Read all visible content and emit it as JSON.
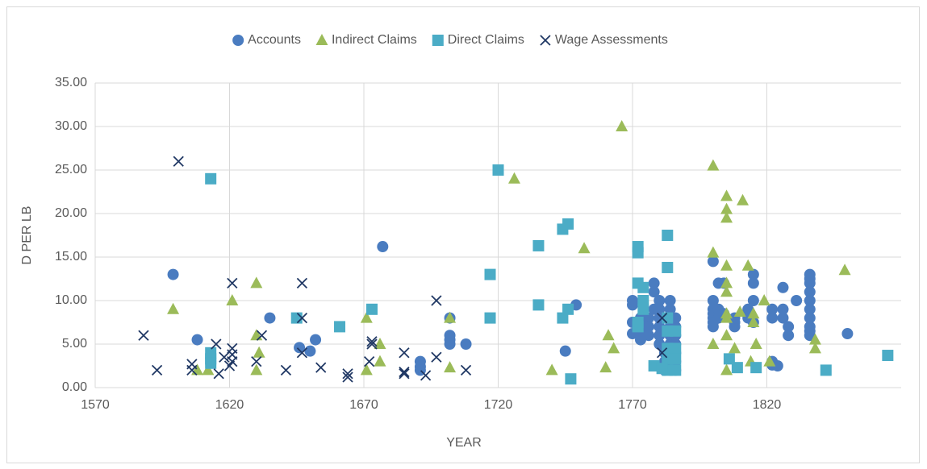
{
  "chart_data": {
    "type": "scatter",
    "x_label": "YEAR",
    "y_label": "D PER LB",
    "xlim": [
      1570,
      1870
    ],
    "xticks": [
      1570,
      1620,
      1670,
      1720,
      1770,
      1820
    ],
    "ylim": [
      0,
      35
    ],
    "yticks": [
      {
        "value": 0,
        "label": "0.00"
      },
      {
        "value": 5,
        "label": "5.00"
      },
      {
        "value": 10,
        "label": "10.00"
      },
      {
        "value": 15,
        "label": "15.00"
      },
      {
        "value": 20,
        "label": "20.00"
      },
      {
        "value": 25,
        "label": "25.00"
      },
      {
        "value": 30,
        "label": "30.00"
      },
      {
        "value": 35,
        "label": "35.00"
      }
    ],
    "grid": true,
    "legend": "top",
    "series": [
      {
        "name": "Accounts",
        "color": "#4a7cc0",
        "marker": "circle",
        "x": [
          1599,
          1608,
          1635,
          1646,
          1650,
          1652,
          1677,
          1691,
          1691,
          1691,
          1702,
          1702,
          1702,
          1702,
          1708,
          1745,
          1749,
          1770,
          1770,
          1770,
          1770,
          1773,
          1773,
          1773,
          1773,
          1776,
          1776,
          1776,
          1778,
          1778,
          1778,
          1780,
          1780,
          1780,
          1780,
          1780,
          1780,
          1782,
          1782,
          1782,
          1782,
          1784,
          1784,
          1784,
          1784,
          1784,
          1784,
          1784,
          1784,
          1784,
          1786,
          1786,
          1786,
          1786,
          1786,
          1786,
          1786,
          1800,
          1800,
          1800,
          1800,
          1800,
          1800,
          1800,
          1802,
          1802,
          1802,
          1804,
          1804,
          1808,
          1808,
          1808,
          1813,
          1813,
          1815,
          1815,
          1815,
          1815,
          1822,
          1822,
          1822,
          1822,
          1824,
          1826,
          1826,
          1826,
          1828,
          1828,
          1831,
          1836,
          1836,
          1836,
          1836,
          1836,
          1836,
          1836,
          1836,
          1836,
          1836,
          1850
        ],
        "values": [
          13,
          5.5,
          8,
          4.6,
          4.2,
          5.5,
          16.2,
          3,
          2.4,
          2,
          8,
          6,
          5.5,
          5,
          5,
          4.2,
          9.5,
          9.5,
          10,
          7.5,
          6.2,
          5.5,
          6.5,
          7.5,
          8,
          8,
          6,
          7,
          11,
          12,
          9,
          10,
          9,
          8,
          7,
          6,
          5,
          4,
          3,
          2.5,
          2,
          10,
          9,
          8,
          7,
          6,
          5,
          4,
          3,
          2,
          8,
          7,
          6,
          5,
          4,
          3,
          2,
          14.5,
          10,
          9,
          8.5,
          8,
          7.5,
          7,
          12,
          9,
          8,
          12,
          8.5,
          8,
          7.5,
          7,
          8,
          9,
          13,
          12,
          10,
          7.5,
          9,
          8,
          3,
          2.6,
          2.5,
          11.5,
          9,
          8,
          7,
          6,
          10,
          13,
          12.5,
          12,
          11,
          10,
          9,
          8,
          7,
          6.5,
          6,
          6.2
        ]
      },
      {
        "name": "Indirect Claims",
        "color": "#9bbb59",
        "marker": "triangle",
        "x": [
          1599,
          1608,
          1612,
          1621,
          1630,
          1630,
          1631,
          1630,
          1671,
          1671,
          1676,
          1676,
          1702,
          1702,
          1726,
          1740,
          1752,
          1761,
          1763,
          1760,
          1766,
          1800,
          1800,
          1800,
          1805,
          1805,
          1805,
          1805,
          1805,
          1805,
          1805,
          1805,
          1805,
          1805,
          1808,
          1811,
          1810,
          1813,
          1815,
          1815,
          1816,
          1814,
          1819,
          1821,
          1838,
          1838,
          1849
        ],
        "values": [
          9,
          2,
          2,
          10,
          12,
          6,
          4,
          2,
          8,
          2,
          5,
          3,
          8,
          2.3,
          24,
          2,
          16,
          6,
          4.5,
          2.3,
          30,
          25.5,
          15.5,
          5,
          22,
          20.5,
          19.5,
          14,
          12,
          11,
          8.5,
          8,
          6,
          2,
          4.5,
          21.5,
          8.7,
          14,
          8.5,
          7.5,
          5,
          3,
          10,
          3,
          5.5,
          4.5,
          13.5
        ]
      },
      {
        "name": "Direct Claims",
        "color": "#4bacc6",
        "marker": "square",
        "x": [
          1613,
          1613,
          1613,
          1613,
          1645,
          1661,
          1673,
          1717,
          1717,
          1720,
          1735,
          1735,
          1744,
          1746,
          1744,
          1746,
          1747,
          1772,
          1772,
          1772,
          1774,
          1774,
          1774,
          1772,
          1772,
          1783,
          1783,
          1783,
          1783,
          1783,
          1783,
          1783,
          1778,
          1781,
          1786,
          1786,
          1786,
          1786,
          1809,
          1806,
          1816,
          1842,
          1865
        ],
        "values": [
          24,
          4,
          3.3,
          2.8,
          8,
          7,
          9,
          13,
          8,
          25,
          16.3,
          9.5,
          18.2,
          18.8,
          8,
          9,
          1,
          16.2,
          15.5,
          12,
          11.5,
          10,
          9,
          7.5,
          7,
          17.5,
          13.8,
          8,
          6.5,
          4.5,
          3.3,
          2,
          2.5,
          2.2,
          6.5,
          4.5,
          3.3,
          2,
          2.3,
          3.3,
          2.3,
          2,
          3.7
        ]
      },
      {
        "name": "Wage Assessments",
        "color": "#203864",
        "marker": "x",
        "x": [
          1588,
          1593,
          1601,
          1606,
          1606,
          1615,
          1616,
          1618,
          1620,
          1621,
          1621,
          1621,
          1621,
          1630,
          1632,
          1641,
          1647,
          1647,
          1647,
          1654,
          1673,
          1673,
          1664,
          1664,
          1672,
          1685,
          1685,
          1685,
          1693,
          1697,
          1697,
          1708,
          1781,
          1781
        ],
        "values": [
          6,
          2,
          26,
          2.7,
          2,
          5,
          1.6,
          3.5,
          2.5,
          12,
          4.5,
          3.8,
          3,
          3,
          6,
          2,
          8,
          12,
          4,
          2.3,
          5.3,
          5,
          1.6,
          1.2,
          3,
          4,
          1.8,
          1.6,
          1.4,
          3.5,
          10,
          2,
          4,
          8
        ]
      }
    ]
  }
}
